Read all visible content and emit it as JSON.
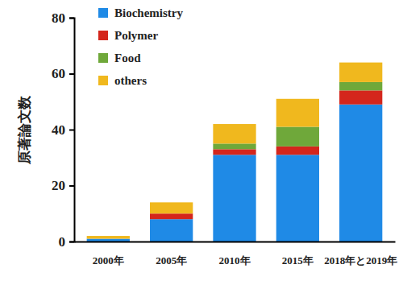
{
  "chart_data": {
    "type": "bar",
    "stacked": true,
    "legend": "top-left",
    "y_label": "原著論文数",
    "categories": [
      "2000年",
      "2005年",
      "2010年",
      "2015年",
      "2018年と2019年"
    ],
    "series": [
      {
        "name": "Biochemistry",
        "color": "#1f8ae6",
        "values": [
          1,
          8,
          31,
          31,
          49
        ]
      },
      {
        "name": "Polymer",
        "color": "#d4261c",
        "values": [
          0,
          2,
          2,
          3,
          5
        ]
      },
      {
        "name": "Food",
        "color": "#6fa83a",
        "values": [
          0,
          0,
          2,
          7,
          3
        ]
      },
      {
        "name": "others",
        "color": "#f0b81e",
        "values": [
          1,
          4,
          7,
          10,
          7
        ]
      }
    ],
    "ylim": [
      0,
      80
    ],
    "yticks": [
      0,
      20,
      40,
      60,
      80
    ]
  }
}
